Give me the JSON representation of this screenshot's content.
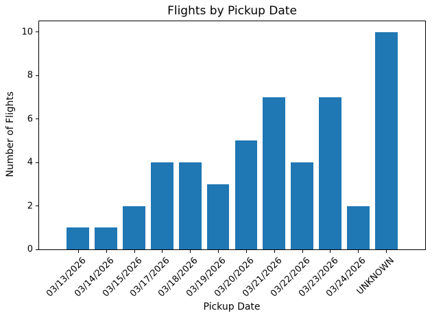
{
  "chart_data": {
    "type": "bar",
    "title": "Flights by Pickup Date",
    "xlabel": "Pickup Date",
    "ylabel": "Number of Flights",
    "categories": [
      "03/13/2026",
      "03/14/2026",
      "03/15/2026",
      "03/17/2026",
      "03/18/2026",
      "03/19/2026",
      "03/20/2026",
      "03/21/2026",
      "03/22/2026",
      "03/23/2026",
      "03/24/2026",
      "UNKNOWN"
    ],
    "values": [
      1,
      1,
      2,
      4,
      4,
      3,
      5,
      7,
      4,
      7,
      2,
      10
    ],
    "yticks": [
      0,
      2,
      4,
      6,
      8,
      10
    ],
    "ylim": [
      0,
      10.5
    ],
    "xtick_rotation_deg": 45,
    "bar_color": "#1f77b4",
    "axis_color": "#000000",
    "text_color": "#000000",
    "background_color": "#ffffff",
    "grid": false,
    "legend": null,
    "bar_width_fraction": 0.8,
    "x_margin_units": 0.99
  }
}
